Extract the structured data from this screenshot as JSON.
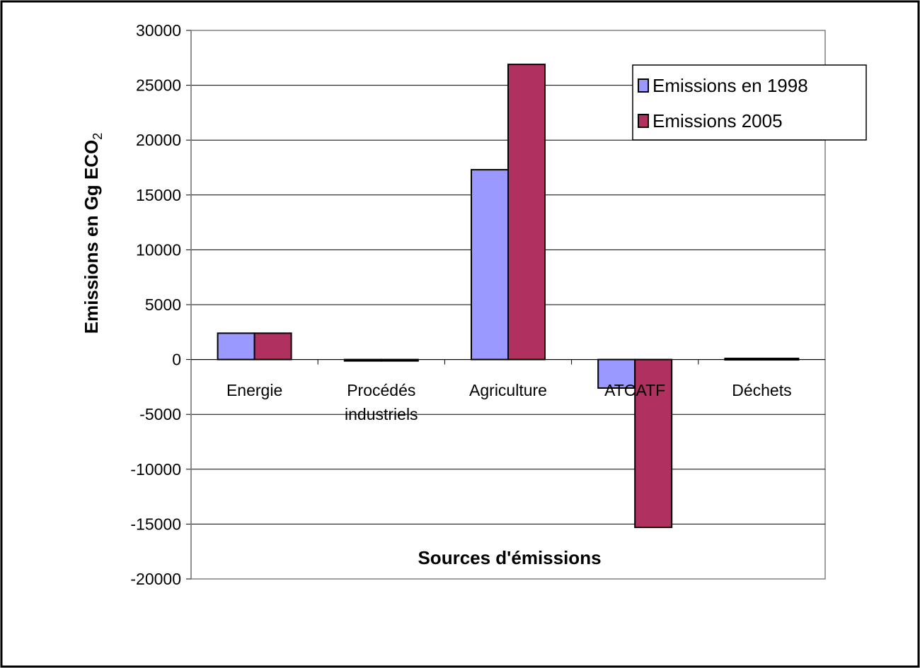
{
  "chart_data": {
    "type": "bar",
    "title": "",
    "xlabel": "Sources d'émissions",
    "ylabel": "Emissions en Gg ECO",
    "ylabel_subscript": "2",
    "categories": [
      [
        "Energie"
      ],
      [
        "Procédés",
        "industriels"
      ],
      [
        "Agriculture"
      ],
      [
        "ATCATF"
      ],
      [
        "Déchets"
      ]
    ],
    "series": [
      {
        "name": "Emissions en 1998",
        "color": "#9999ff",
        "values": [
          2400,
          0,
          17300,
          -2600,
          100
        ]
      },
      {
        "name": "Emissions 2005",
        "color": "#b03060",
        "values": [
          2400,
          0,
          26900,
          -15300,
          100
        ]
      }
    ],
    "ylim": [
      -20000,
      30000
    ],
    "yticks": [
      30000,
      25000,
      20000,
      15000,
      10000,
      5000,
      0,
      -5000,
      -10000,
      -15000,
      -20000
    ],
    "grid": true,
    "legend_position": "top-right"
  }
}
